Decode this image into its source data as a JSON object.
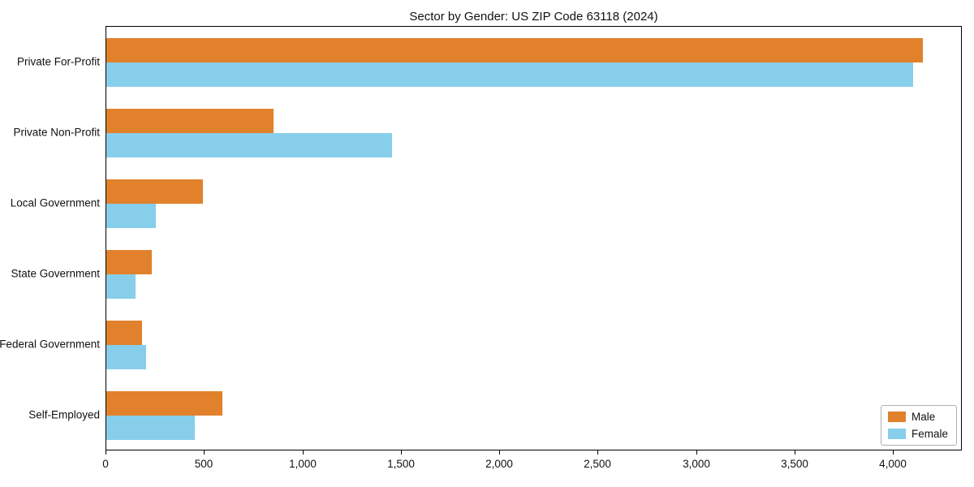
{
  "chart_data": {
    "type": "bar",
    "orientation": "horizontal",
    "title": "Sector by Gender: US ZIP Code 63118 (2024)",
    "categories": [
      "Private For-Profit",
      "Private Non-Profit",
      "Local Government",
      "State Government",
      "Federal Government",
      "Self-Employed"
    ],
    "series": [
      {
        "name": "Male",
        "color": "#e1812c",
        "values": [
          4150,
          850,
          490,
          230,
          180,
          590
        ]
      },
      {
        "name": "Female",
        "color": "#87ceeb",
        "values": [
          4100,
          1450,
          250,
          150,
          200,
          450
        ]
      }
    ],
    "xlim": [
      0,
      4350
    ],
    "xticks": [
      0,
      500,
      1000,
      1500,
      2000,
      2500,
      3000,
      3500,
      4000
    ],
    "xtick_labels": [
      "0",
      "500",
      "1,000",
      "1,500",
      "2,000",
      "2,500",
      "3,000",
      "3,500",
      "4,000"
    ],
    "xlabel": "",
    "ylabel": "",
    "grid": false,
    "legend_position": "lower right"
  }
}
